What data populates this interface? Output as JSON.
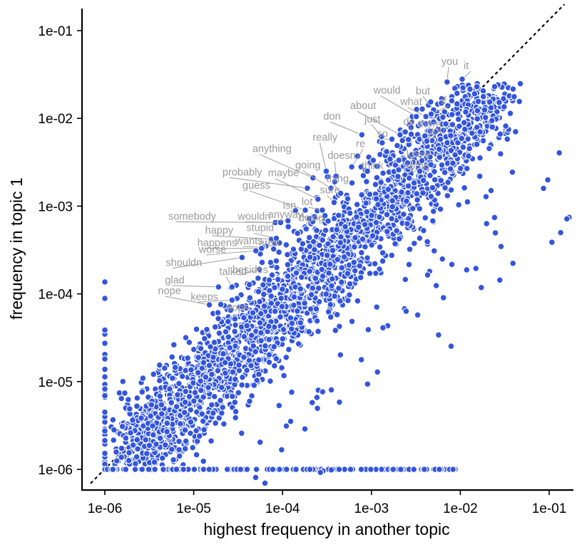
{
  "chart_data": {
    "type": "scatter",
    "xlabel": "highest frequency in another topic",
    "ylabel": "frequency in topic 1",
    "x_scale": "log10",
    "y_scale": "log10",
    "xlim": [
      7e-07,
      0.17
    ],
    "ylim": [
      9e-07,
      0.15
    ],
    "x_ticks": [
      {
        "value": 1e-06,
        "label": "1e-06"
      },
      {
        "value": 1e-05,
        "label": "1e-05"
      },
      {
        "value": 0.0001,
        "label": "1e-04"
      },
      {
        "value": 0.001,
        "label": "1e-03"
      },
      {
        "value": 0.01,
        "label": "1e-02"
      },
      {
        "value": 0.1,
        "label": "1e-01"
      }
    ],
    "y_ticks": [
      {
        "value": 1e-06,
        "label": "1e-06"
      },
      {
        "value": 1e-05,
        "label": "1e-05"
      },
      {
        "value": 0.0001,
        "label": "1e-04"
      },
      {
        "value": 0.001,
        "label": "1e-03"
      },
      {
        "value": 0.01,
        "label": "1e-02"
      },
      {
        "value": 0.1,
        "label": "1e-01"
      }
    ],
    "reference_line": {
      "style": "dotted",
      "relation": "y = x"
    },
    "point_color": "#3355dd",
    "point_outline": "#ffffff",
    "label_color": "#9a9a9a",
    "grid": false,
    "legend": "none",
    "labeled_points": [
      {
        "word": "you",
        "x": 0.0071,
        "y": 0.026
      },
      {
        "word": "it",
        "x": 0.0105,
        "y": 0.028
      },
      {
        "word": "but",
        "x": 0.005,
        "y": 0.0125
      },
      {
        "word": "would",
        "x": 0.0032,
        "y": 0.0105
      },
      {
        "word": "what",
        "x": 0.0041,
        "y": 0.0105
      },
      {
        "word": "if",
        "x": 0.0047,
        "y": 0.0112
      },
      {
        "word": "about",
        "x": 0.0021,
        "y": 0.0065
      },
      {
        "word": "do",
        "x": 0.0028,
        "y": 0.0066
      },
      {
        "word": "there",
        "x": 0.004,
        "y": 0.0063
      },
      {
        "word": "don",
        "x": 0.00078,
        "y": 0.0065
      },
      {
        "word": "just",
        "x": 0.0013,
        "y": 0.0062
      },
      {
        "word": "so",
        "x": 0.0017,
        "y": 0.0058
      },
      {
        "word": "you",
        "x": 0.0042,
        "y": 0.0055
      },
      {
        "word": "anything",
        "x": 0.00022,
        "y": 0.0021
      },
      {
        "word": "really",
        "x": 0.00031,
        "y": 0.0025
      },
      {
        "word": "re",
        "x": 0.0006,
        "y": 0.0028
      },
      {
        "word": "doesn",
        "x": 0.0004,
        "y": 0.0022
      },
      {
        "word": "think",
        "x": 0.0009,
        "y": 0.0025
      },
      {
        "word": "know",
        "x": 0.0037,
        "y": 0.0033
      },
      {
        "word": "some",
        "x": 0.0035,
        "y": 0.0025
      },
      {
        "word": "probably",
        "x": 0.00019,
        "y": 0.0016
      },
      {
        "word": "going",
        "x": 0.00035,
        "y": 0.0016
      },
      {
        "word": "thing",
        "x": 0.00045,
        "y": 0.0014
      },
      {
        "word": "maybe",
        "x": 0.00025,
        "y": 0.0012
      },
      {
        "word": "sure",
        "x": 0.00038,
        "y": 0.0011
      },
      {
        "word": "lot",
        "x": 0.00028,
        "y": 0.0009
      },
      {
        "word": "guess",
        "x": 0.00018,
        "y": 0.0009
      },
      {
        "word": "somebody",
        "x": 8.3e-05,
        "y": 0.00065
      },
      {
        "word": "wouldn",
        "x": 9.5e-05,
        "y": 0.00065
      },
      {
        "word": "isn",
        "x": 0.0002,
        "y": 0.00072
      },
      {
        "word": "doing",
        "x": 0.0003,
        "y": 0.00078
      },
      {
        "word": "anyway",
        "x": 0.000115,
        "y": 0.00068
      },
      {
        "word": "happy",
        "x": 7.5e-05,
        "y": 0.00042
      },
      {
        "word": "stupid",
        "x": 8.5e-05,
        "y": 0.00043
      },
      {
        "word": "aren",
        "x": 6.5e-05,
        "y": 0.00035
      },
      {
        "word": "wants",
        "x": 6e-05,
        "y": 0.00034
      },
      {
        "word": "happens",
        "x": 5.8e-05,
        "y": 0.00033
      },
      {
        "word": "worse",
        "x": 5e-05,
        "y": 0.00031
      },
      {
        "word": "shouldn",
        "x": 3.5e-05,
        "y": 0.00026
      },
      {
        "word": "besides",
        "x": 5.5e-05,
        "y": 0.00019
      },
      {
        "word": "talked",
        "x": 2.7e-05,
        "y": 0.00012
      },
      {
        "word": "glad",
        "x": 1.9e-05,
        "y": 0.00012
      },
      {
        "word": "keeps",
        "x": 2.7e-05,
        "y": 8.5e-05
      },
      {
        "word": "nope",
        "x": 1.5e-05,
        "y": 7.5e-05
      },
      {
        "word": "oops",
        "x": 2.6e-05,
        "y": 6.5e-05
      }
    ]
  }
}
